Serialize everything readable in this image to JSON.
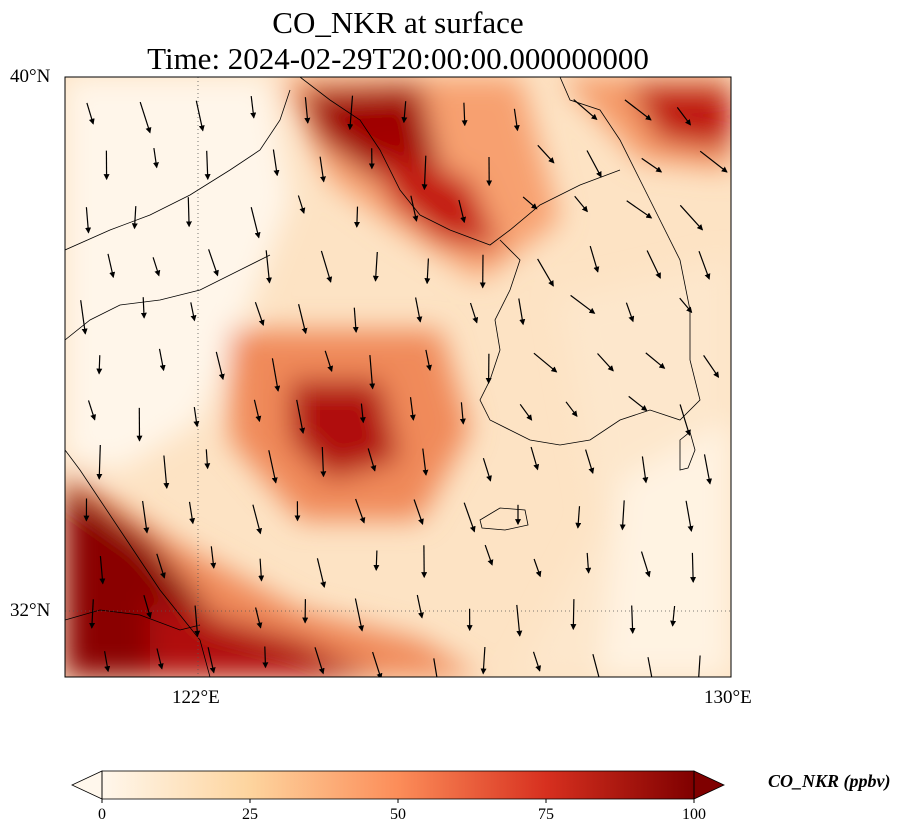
{
  "title": {
    "line1": "CO_NKR at surface",
    "line2": "Time: 2024-02-29T20:00:00.000000000"
  },
  "map": {
    "lat_ticks": [
      "40°N",
      "32°N"
    ],
    "lon_ticks": [
      "122°E",
      "130°E"
    ],
    "extent_lon": [
      120,
      130
    ],
    "extent_lat": [
      31,
      40
    ]
  },
  "colorbar": {
    "label": "CO_NKR (ppbv)",
    "ticks": [
      "0",
      "25",
      "50",
      "75",
      "100"
    ],
    "range": [
      0,
      100
    ],
    "colormap": "OrRd",
    "colors": [
      "#fff7ec",
      "#fdd49e",
      "#fc8d59",
      "#d7301f",
      "#7f0000"
    ]
  }
}
